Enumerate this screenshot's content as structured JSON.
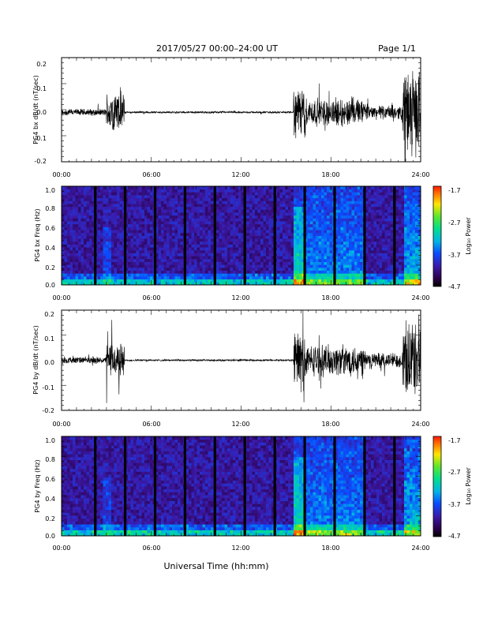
{
  "header": {
    "title": "2017/05/27  00:00–24:00 UT",
    "page": "Page 1/1"
  },
  "x_axis_label": "Universal Time (hh:mm)",
  "chart_data": [
    {
      "type": "line",
      "panel": "PG4 bx dB/dt",
      "ylabel": "PG4 bx dB/dt (nT/sec)",
      "xlim": [
        0,
        24
      ],
      "ylim": [
        -0.2,
        0.2
      ],
      "xticks": [
        "00:00",
        "06:00",
        "12:00",
        "18:00",
        "24:00"
      ],
      "yticks": [
        "0.2",
        "0.1",
        "0.0",
        "-0.1",
        "-0.2"
      ],
      "baseline": -0.01,
      "activity": [
        {
          "x": [
            0.0,
            3.0
          ],
          "amp": 0.015
        },
        {
          "x": [
            3.0,
            4.2
          ],
          "amp": 0.09
        },
        {
          "x": [
            4.2,
            15.5
          ],
          "amp": 0.004
        },
        {
          "x": [
            15.5,
            16.3
          ],
          "amp": 0.11
        },
        {
          "x": [
            16.3,
            20.3
          ],
          "amp": 0.06
        },
        {
          "x": [
            20.3,
            22.8
          ],
          "amp": 0.03
        },
        {
          "x": [
            22.8,
            24.0
          ],
          "amp": 0.18
        }
      ]
    },
    {
      "type": "heatmap",
      "panel": "PG4 bx Freq",
      "ylabel": "PG4 bx Freq (Hz)",
      "xlim": [
        0,
        24
      ],
      "ylim": [
        0,
        1.0
      ],
      "xticks": [
        "00:00",
        "06:00",
        "12:00",
        "18:00",
        "24:00"
      ],
      "yticks": [
        "1.0",
        "0.8",
        "0.6",
        "0.4",
        "0.2",
        "0.0"
      ],
      "colorbar": {
        "label": "Log₁₀ Power",
        "ticks": [
          "-1.7",
          "-2.7",
          "-3.7",
          "-4.7"
        ],
        "range": [
          -4.7,
          -1.7
        ]
      },
      "data_gaps_hours": [
        2.25,
        4.25,
        6.25,
        8.25,
        10.25,
        12.25,
        14.25,
        16.25,
        18.25,
        20.25,
        22.25
      ]
    },
    {
      "type": "line",
      "panel": "PG4 by dB/dt",
      "ylabel": "PG4 by dB/dt (nT/sec)",
      "xlim": [
        0,
        24
      ],
      "ylim": [
        -0.2,
        0.2
      ],
      "xticks": [
        "00:00",
        "06:00",
        "12:00",
        "18:00",
        "24:00"
      ],
      "yticks": [
        "0.2",
        "0.1",
        "0.0",
        "-0.1",
        "-0.2"
      ],
      "baseline": 0.0,
      "activity": [
        {
          "x": [
            0.0,
            3.0
          ],
          "amp": 0.015
        },
        {
          "x": [
            3.0,
            4.2
          ],
          "amp": 0.08
        },
        {
          "x": [
            4.2,
            15.5
          ],
          "amp": 0.004
        },
        {
          "x": [
            15.5,
            16.3
          ],
          "amp": 0.15
        },
        {
          "x": [
            16.3,
            20.3
          ],
          "amp": 0.07
        },
        {
          "x": [
            20.3,
            22.8
          ],
          "amp": 0.035
        },
        {
          "x": [
            22.8,
            24.0
          ],
          "amp": 0.16
        }
      ]
    },
    {
      "type": "heatmap",
      "panel": "PG4 by Freq",
      "ylabel": "PG4 by Freq (Hz)",
      "xlim": [
        0,
        24
      ],
      "ylim": [
        0,
        1.0
      ],
      "xticks": [
        "00:00",
        "06:00",
        "12:00",
        "18:00",
        "24:00"
      ],
      "yticks": [
        "1.0",
        "0.8",
        "0.6",
        "0.4",
        "0.2",
        "0.0"
      ],
      "colorbar": {
        "label": "Log₁₀ Power",
        "ticks": [
          "-1.7",
          "-2.7",
          "-3.7",
          "-4.7"
        ],
        "range": [
          -4.7,
          -1.7
        ]
      },
      "data_gaps_hours": [
        2.25,
        4.25,
        6.25,
        8.25,
        10.25,
        12.25,
        14.25,
        16.25,
        18.25,
        20.25,
        22.25
      ]
    }
  ]
}
